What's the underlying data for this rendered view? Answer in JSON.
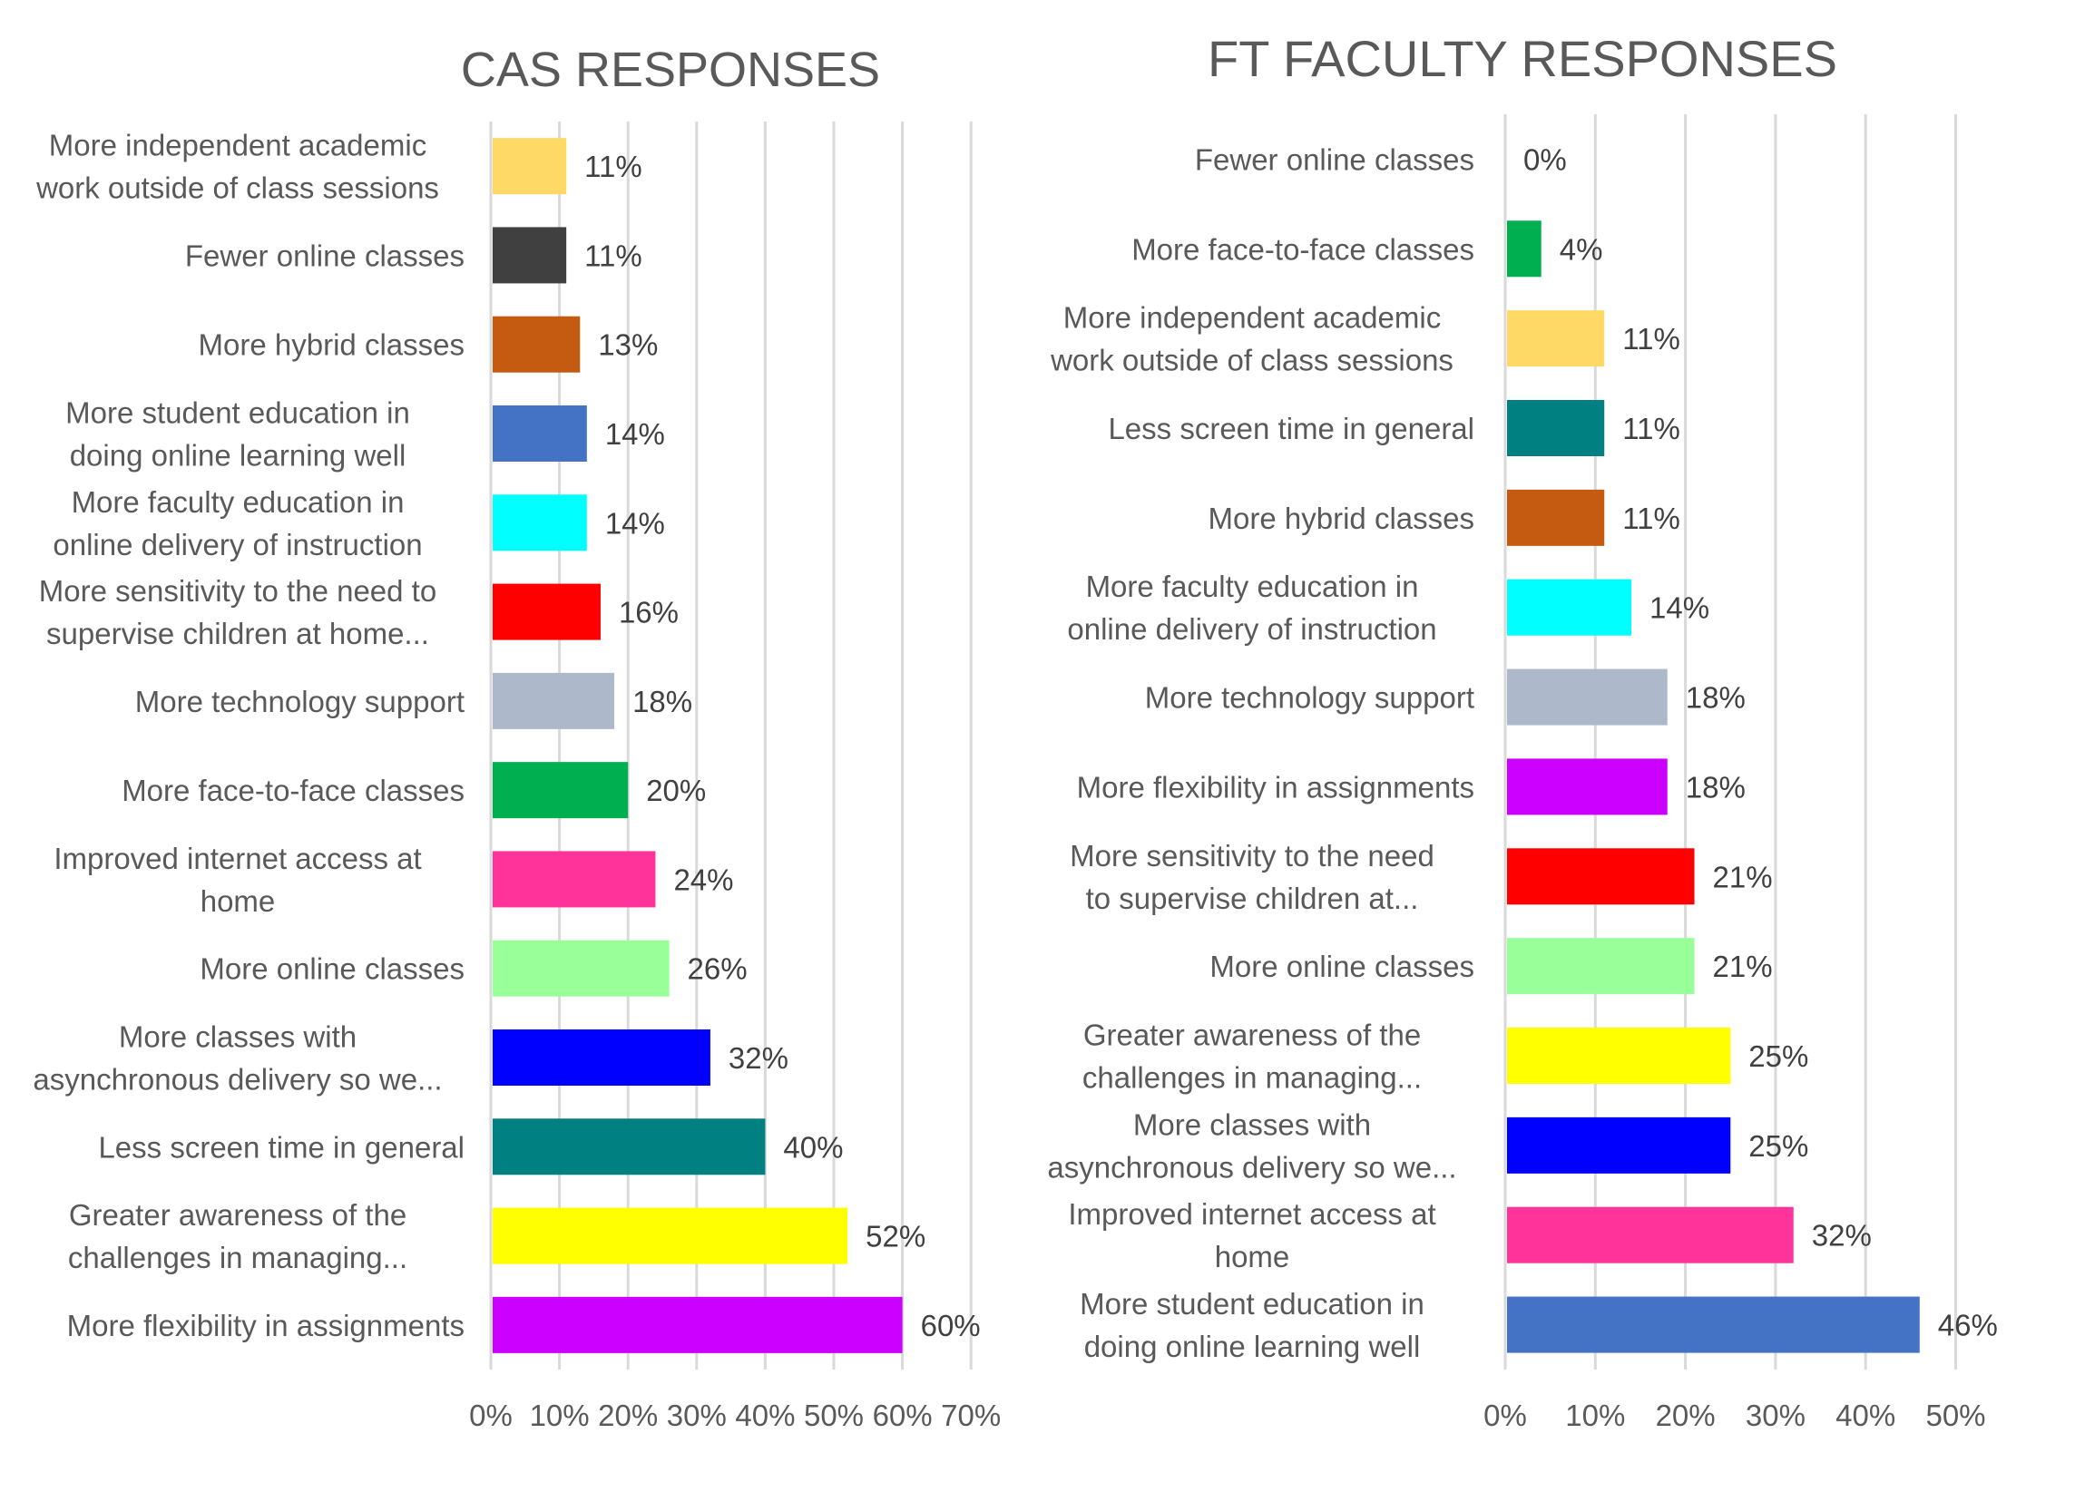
{
  "chart_data": [
    {
      "type": "bar",
      "orientation": "horizontal",
      "title": "CAS RESPONSES",
      "xlabel": "",
      "ylabel": "",
      "xlim": [
        0,
        70
      ],
      "x_ticks": [
        "0%",
        "10%",
        "20%",
        "30%",
        "40%",
        "50%",
        "60%",
        "70%"
      ],
      "grid": true,
      "legend": "none",
      "categories": [
        [
          "More independent academic",
          "work outside of class sessions"
        ],
        [
          "Fewer online classes"
        ],
        [
          "More hybrid classes"
        ],
        [
          "More student education in",
          "doing online learning well"
        ],
        [
          "More faculty education in",
          "online delivery of instruction"
        ],
        [
          "More sensitivity to the need to",
          "supervise children at home..."
        ],
        [
          "More technology support"
        ],
        [
          "More face-to-face classes"
        ],
        [
          "Improved internet access at",
          "home"
        ],
        [
          "More online classes"
        ],
        [
          "More classes with",
          "asynchronous delivery so we..."
        ],
        [
          "Less screen time in general"
        ],
        [
          "Greater awareness of the",
          "challenges in managing..."
        ],
        [
          "More flexibility in assignments"
        ]
      ],
      "values": [
        11,
        11,
        13,
        14,
        14,
        16,
        18,
        20,
        24,
        26,
        32,
        40,
        52,
        60
      ],
      "value_labels": [
        "11%",
        "11%",
        "13%",
        "14%",
        "14%",
        "16%",
        "18%",
        "20%",
        "24%",
        "26%",
        "32%",
        "40%",
        "52%",
        "60%"
      ],
      "colors": [
        "#FFD966",
        "#404040",
        "#C55A11",
        "#4472C4",
        "#00FFFF",
        "#FF0000",
        "#ADB9CA",
        "#00B050",
        "#FF3399",
        "#99FF99",
        "#0000FF",
        "#008080",
        "#FFFF00",
        "#CC00FF"
      ]
    },
    {
      "type": "bar",
      "orientation": "horizontal",
      "title": "FT FACULTY RESPONSES",
      "xlabel": "",
      "ylabel": "",
      "xlim": [
        0,
        50
      ],
      "x_ticks": [
        "0%",
        "10%",
        "20%",
        "30%",
        "40%",
        "50%"
      ],
      "grid": true,
      "legend": "none",
      "categories": [
        [
          "Fewer online classes"
        ],
        [
          "More face-to-face classes"
        ],
        [
          "More independent academic",
          "work outside of class sessions"
        ],
        [
          "Less screen time in general"
        ],
        [
          "More hybrid classes"
        ],
        [
          "More faculty education in",
          "online delivery of instruction"
        ],
        [
          "More technology support"
        ],
        [
          "More flexibility in assignments"
        ],
        [
          "More sensitivity to the need",
          "to supervise children at..."
        ],
        [
          "More online classes"
        ],
        [
          "Greater awareness of the",
          "challenges in managing..."
        ],
        [
          "More classes with",
          "asynchronous delivery so we..."
        ],
        [
          "Improved internet access at",
          "home"
        ],
        [
          "More student education in",
          "doing online learning well"
        ]
      ],
      "values": [
        0,
        4,
        11,
        11,
        11,
        14,
        18,
        18,
        21,
        21,
        25,
        25,
        32,
        46
      ],
      "value_labels": [
        "0%",
        "4%",
        "11%",
        "11%",
        "11%",
        "14%",
        "18%",
        "18%",
        "21%",
        "21%",
        "25%",
        "25%",
        "32%",
        "46%"
      ],
      "colors": [
        "#404040",
        "#00B050",
        "#FFD966",
        "#008080",
        "#C55A11",
        "#00FFFF",
        "#ADB9CA",
        "#CC00FF",
        "#FF0000",
        "#99FF99",
        "#FFFF00",
        "#0000FF",
        "#FF3399",
        "#4472C4"
      ]
    }
  ]
}
